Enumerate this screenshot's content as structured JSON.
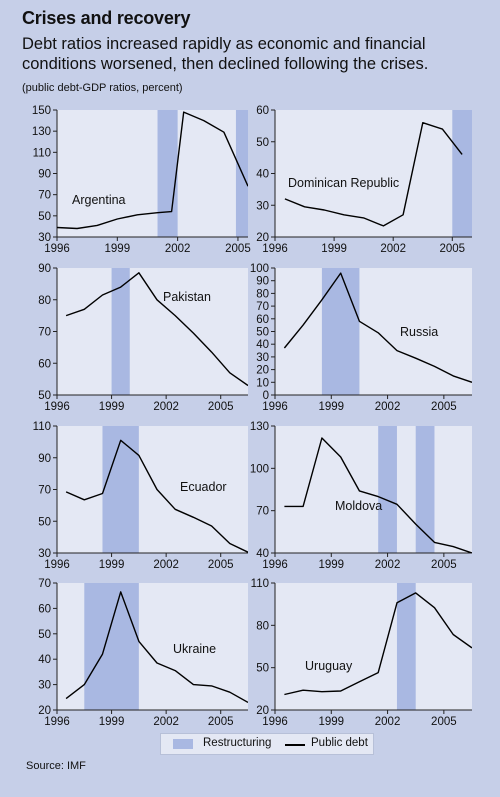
{
  "title": "Crises and recovery",
  "subtitle": "Debt ratios increased rapidly as economic and financial conditions worsened, then declined following the crises.",
  "units_note": "(public debt-GDP ratios, percent)",
  "legend": {
    "restructuring": "Restructuring",
    "public_debt": "Public debt"
  },
  "source": "Source: IMF",
  "colors": {
    "background": "#c6cfe8",
    "plot_area": "#e4e8f4",
    "restructuring": "#a9b8e2",
    "line": "#000000"
  },
  "chart_data": [
    {
      "type": "line",
      "country": "Argentina",
      "xlim": [
        1996,
        2005.5
      ],
      "ylim": [
        30,
        150
      ],
      "xticks": [
        1996,
        1999,
        2002,
        2005
      ],
      "yticks": [
        30,
        50,
        70,
        90,
        110,
        130,
        150
      ],
      "shaded": [
        [
          2001,
          2002
        ],
        [
          2004.9,
          2006
        ]
      ],
      "x": [
        1996,
        1997,
        1998,
        1999,
        2000,
        2001,
        2001.7,
        2002.3,
        2003.3,
        2004.3,
        2005.5
      ],
      "y": [
        39,
        38,
        41,
        47,
        51,
        53,
        54,
        148,
        140,
        129,
        78
      ]
    },
    {
      "type": "line",
      "country": "Dominican Republic",
      "xlim": [
        1996,
        2006
      ],
      "ylim": [
        20,
        60
      ],
      "xticks": [
        1996,
        1999,
        2002,
        2005
      ],
      "yticks": [
        20,
        30,
        40,
        50,
        60
      ],
      "shaded": [
        [
          2005,
          2006
        ]
      ],
      "x": [
        1996.5,
        1997.5,
        1998.5,
        1999.5,
        2000.5,
        2001.5,
        2002.5,
        2003.5,
        2004.5,
        2005.5
      ],
      "y": [
        32,
        29.5,
        28.5,
        27,
        26,
        23.5,
        27,
        56,
        54,
        46
      ]
    },
    {
      "type": "line",
      "country": "Pakistan",
      "xlim": [
        1996,
        2006.5
      ],
      "ylim": [
        50,
        90
      ],
      "xticks": [
        1996,
        1999,
        2002,
        2005
      ],
      "yticks": [
        50,
        60,
        70,
        80,
        90
      ],
      "shaded": [
        [
          1999,
          2000
        ]
      ],
      "x": [
        1996.5,
        1997.5,
        1998.5,
        1999.5,
        2000.5,
        2001.5,
        2002.5,
        2003.5,
        2004.5,
        2005.5,
        2006.5
      ],
      "y": [
        75,
        77,
        81.5,
        84,
        88.5,
        80,
        75,
        69.5,
        63.5,
        57,
        53
      ]
    },
    {
      "type": "line",
      "country": "Russia",
      "xlim": [
        1996,
        2006.5
      ],
      "ylim": [
        0,
        100
      ],
      "xticks": [
        1996,
        1999,
        2002,
        2005
      ],
      "yticks": [
        0,
        10,
        20,
        30,
        40,
        50,
        60,
        70,
        80,
        90,
        100
      ],
      "shaded": [
        [
          1998.5,
          2000.5
        ]
      ],
      "x": [
        1996.5,
        1997.5,
        1998.5,
        1999.5,
        2000.5,
        2001.5,
        2002.5,
        2003.5,
        2004.5,
        2005.5,
        2006.5
      ],
      "y": [
        37,
        55,
        75,
        96,
        58,
        49,
        35,
        29,
        22.5,
        15,
        10
      ]
    },
    {
      "type": "line",
      "country": "Ecuador",
      "xlim": [
        1996,
        2006.5
      ],
      "ylim": [
        30,
        110
      ],
      "xticks": [
        1996,
        1999,
        2002,
        2005
      ],
      "yticks": [
        30,
        50,
        70,
        90,
        110
      ],
      "shaded": [
        [
          1998.5,
          2000.5
        ]
      ],
      "x": [
        1996.5,
        1997.5,
        1998.5,
        1999.5,
        2000.5,
        2001.5,
        2002.5,
        2003.5,
        2004.5,
        2005.5,
        2006.5
      ],
      "y": [
        68.5,
        63.5,
        67.5,
        101,
        91.5,
        70,
        57.5,
        52.5,
        47,
        36,
        30.5
      ]
    },
    {
      "type": "line",
      "country": "Moldova",
      "xlim": [
        1996,
        2006.5
      ],
      "ylim": [
        40,
        130
      ],
      "xticks": [
        1996,
        1999,
        2002,
        2005
      ],
      "yticks": [
        40,
        70,
        100,
        130
      ],
      "shaded": [
        [
          2001.5,
          2002.5
        ],
        [
          2003.5,
          2004.5
        ]
      ],
      "x": [
        1996.5,
        1997.5,
        1998.5,
        1999.5,
        2000.5,
        2001.5,
        2002.5,
        2003.5,
        2004.5,
        2005.5,
        2006.5
      ],
      "y": [
        73,
        73,
        121.5,
        108,
        84,
        80,
        74.5,
        60.5,
        47.5,
        44.5,
        40
      ]
    },
    {
      "type": "line",
      "country": "Ukraine",
      "xlim": [
        1996,
        2006.5
      ],
      "ylim": [
        20,
        70
      ],
      "xticks": [
        1996,
        1999,
        2002,
        2005
      ],
      "yticks": [
        20,
        30,
        40,
        50,
        60,
        70
      ],
      "shaded": [
        [
          1997.5,
          2000.5
        ]
      ],
      "x": [
        1996.5,
        1997.5,
        1998.5,
        1999.5,
        2000.5,
        2001.5,
        2002.5,
        2003.5,
        2004.5,
        2005.5,
        2006.5
      ],
      "y": [
        24.5,
        30,
        42,
        66.5,
        47,
        38.5,
        35.5,
        30,
        29.5,
        27,
        23
      ]
    },
    {
      "type": "line",
      "country": "Uruguay",
      "xlim": [
        1996,
        2006.5
      ],
      "ylim": [
        20,
        110
      ],
      "xticks": [
        1996,
        1999,
        2002,
        2005
      ],
      "yticks": [
        20,
        50,
        80,
        110
      ],
      "shaded": [
        [
          2002.5,
          2003.5
        ]
      ],
      "x": [
        1996.5,
        1997.5,
        1998.5,
        1999.5,
        2000.5,
        2001.5,
        2002.5,
        2003.5,
        2004.5,
        2005.5,
        2006.5
      ],
      "y": [
        31,
        34,
        33,
        33.5,
        40,
        46.5,
        96,
        103,
        92.5,
        73.5,
        64
      ]
    }
  ]
}
